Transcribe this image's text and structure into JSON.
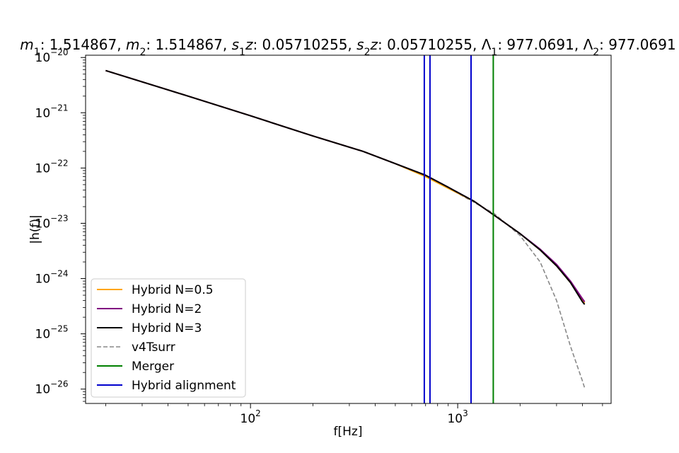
{
  "chart_data": {
    "type": "line",
    "title_parts": [
      {
        "math": "m",
        "sub": "1",
        "text": ": 1.514867, "
      },
      {
        "math": "m",
        "sub": "2",
        "text": ": 1.514867, "
      },
      {
        "math": "s",
        "sub": "1",
        "tail": "z",
        "text": ": 0.05710255, "
      },
      {
        "math": "s",
        "sub": "2",
        "tail": "z",
        "text": ": 0.05710255, "
      },
      {
        "plain": "Λ",
        "sub": "1",
        "text": ": 977.0691, "
      },
      {
        "plain": "Λ",
        "sub": "2",
        "text": ": 977.0691"
      }
    ],
    "xlabel": "f[Hz]",
    "ylabel": "|h(f)|",
    "xscale": "log",
    "yscale": "log",
    "xlim": [
      16,
      5500
    ],
    "ylim": [
      5.5e-27,
      1.1e-20
    ],
    "x_ticks": [
      {
        "value": 100,
        "base": "10",
        "exp": "2"
      },
      {
        "value": 1000,
        "base": "10",
        "exp": "3"
      }
    ],
    "y_ticks": [
      {
        "value": 1e-20,
        "base": "10",
        "exp": "−20"
      },
      {
        "value": 1e-21,
        "base": "10",
        "exp": "−21"
      },
      {
        "value": 1e-22,
        "base": "10",
        "exp": "−22"
      },
      {
        "value": 1e-23,
        "base": "10",
        "exp": "−23"
      },
      {
        "value": 1e-24,
        "base": "10",
        "exp": "−24"
      },
      {
        "value": 1e-25,
        "base": "10",
        "exp": "−25"
      },
      {
        "value": 1e-26,
        "base": "10",
        "exp": "−26"
      }
    ],
    "grid": false,
    "legend_placement": "lower-left",
    "series": [
      {
        "name": "v4Tsurr",
        "color": "#888888",
        "style": "dashed",
        "x": [
          20,
          50,
          100,
          200,
          350,
          500,
          700,
          1000,
          1500,
          2000,
          2500,
          3000,
          3500,
          4000,
          4100
        ],
        "y": [
          5.8e-21,
          2e-21,
          8.8e-22,
          3.8e-22,
          2e-22,
          1.2e-22,
          7.2e-23,
          3.5e-23,
          1.5e-23,
          6e-24,
          2e-24,
          4e-25,
          6e-26,
          1.4e-26,
          1.05e-26
        ]
      },
      {
        "name": "Hybrid N=0.5",
        "color": "#ffa500",
        "style": "solid",
        "x": [
          20,
          50,
          100,
          200,
          350,
          500,
          700,
          900,
          1200,
          1500,
          2000,
          2500,
          3000,
          3500,
          4000,
          4100
        ],
        "y": [
          5.8e-21,
          2e-21,
          8.8e-22,
          3.8e-22,
          2e-22,
          1.2e-22,
          7e-23,
          4.3e-23,
          2.5e-23,
          1.4e-23,
          6.5e-24,
          3.3e-24,
          1.7e-24,
          8.5e-25,
          4e-25,
          3.6e-25
        ]
      },
      {
        "name": "Hybrid N=2",
        "color": "#800080",
        "style": "solid",
        "x": [
          20,
          50,
          100,
          200,
          350,
          500,
          700,
          900,
          1200,
          1500,
          2000,
          2500,
          3000,
          3500,
          4000,
          4100
        ],
        "y": [
          5.8e-21,
          2e-21,
          8.8e-22,
          3.8e-22,
          2e-22,
          1.2e-22,
          7.4e-23,
          4.5e-23,
          2.5e-23,
          1.4e-23,
          6.5e-24,
          3.4e-24,
          1.8e-24,
          9e-25,
          4.3e-25,
          3.8e-25
        ]
      },
      {
        "name": "Hybrid N=3",
        "color": "#000000",
        "style": "solid",
        "x": [
          20,
          50,
          100,
          200,
          350,
          500,
          700,
          900,
          1200,
          1500,
          2000,
          2500,
          3000,
          3500,
          4000,
          4100
        ],
        "y": [
          5.8e-21,
          2e-21,
          8.8e-22,
          3.8e-22,
          2e-22,
          1.2e-22,
          7.4e-23,
          4.5e-23,
          2.5e-23,
          1.4e-23,
          6.5e-24,
          3.3e-24,
          1.7e-24,
          8.5e-25,
          3.8e-25,
          3.4e-25
        ]
      }
    ],
    "vlines": [
      {
        "name": "Merger",
        "color": "#008000",
        "x": [
          1485
        ]
      },
      {
        "name": "Hybrid alignment",
        "color": "#0000cd",
        "x": [
          690,
          735,
          1160
        ]
      }
    ],
    "legend": [
      {
        "label": "Hybrid N=0.5",
        "color": "#ffa500",
        "style": "solid"
      },
      {
        "label": "Hybrid N=2",
        "color": "#800080",
        "style": "solid"
      },
      {
        "label": "Hybrid N=3",
        "color": "#000000",
        "style": "solid"
      },
      {
        "label": "v4Tsurr",
        "color": "#888888",
        "style": "dashed"
      },
      {
        "label": "Merger",
        "color": "#008000",
        "style": "solid"
      },
      {
        "label": "Hybrid alignment",
        "color": "#0000cd",
        "style": "solid"
      }
    ]
  }
}
